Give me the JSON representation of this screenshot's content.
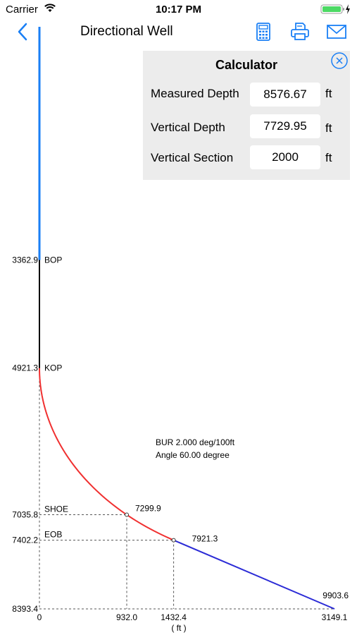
{
  "status_bar": {
    "carrier": "Carrier",
    "time": "10:17 PM"
  },
  "nav": {
    "title": "Directional Well",
    "icons": [
      "chevron-left-icon",
      "calculator-icon",
      "printer-icon",
      "mail-icon"
    ],
    "accent": "#1a7ff5"
  },
  "calculator": {
    "title": "Calculator",
    "rows": [
      {
        "label": "Measured Depth",
        "value": "8576.67",
        "unit": "ft"
      },
      {
        "label": "Vertical Depth",
        "value": "7729.95",
        "unit": "ft"
      },
      {
        "label": "Vertical Section",
        "value": "2000",
        "unit": "ft"
      }
    ]
  },
  "chart_data": {
    "type": "line",
    "x_unit_label": "( ft )",
    "xlim": [
      0,
      3149.1
    ],
    "ylim": [
      0,
      8393.4
    ],
    "y_inverted": true,
    "depth_labels": [
      {
        "depth": 3362.9,
        "value": "3362.9",
        "tag": "BOP"
      },
      {
        "depth": 4921.3,
        "value": "4921.3",
        "tag": "KOP"
      },
      {
        "depth": 7035.8,
        "value": "7035.8",
        "tag": "SHOE"
      },
      {
        "depth": 7402.2,
        "value": "7402.2",
        "tag": "EOB"
      },
      {
        "depth": 8393.4,
        "value": "8393.4",
        "tag": ""
      }
    ],
    "x_ticks": [
      {
        "x": 0,
        "label": "0"
      },
      {
        "x": 932.0,
        "label": "932.0"
      },
      {
        "x": 1432.4,
        "label": "1432.4"
      },
      {
        "x": 3149.1,
        "label": "3149.1"
      }
    ],
    "point_labels": [
      {
        "x": 932.0,
        "y": 7035.8,
        "label": "7299.9"
      },
      {
        "x": 1432.4,
        "y": 7402.2,
        "label": "7921.3"
      },
      {
        "x": 3149.1,
        "y": 8393.4,
        "label": "9903.6"
      }
    ],
    "segments": [
      {
        "name": "riser",
        "color": "#1a7ff5",
        "from": [
          0,
          0
        ],
        "to": [
          0,
          3362.9
        ]
      },
      {
        "name": "vertical",
        "color": "#000000",
        "from": [
          0,
          3362.9
        ],
        "to": [
          0,
          4921.3
        ]
      },
      {
        "name": "build",
        "color": "#f03030",
        "from": [
          0,
          4921.3
        ],
        "to": [
          1432.4,
          7402.2
        ],
        "curved": true
      },
      {
        "name": "tangent",
        "color": "#2b2bd6",
        "from": [
          1432.4,
          7402.2
        ],
        "to": [
          3149.1,
          8393.4
        ]
      }
    ],
    "annotations": [
      "BUR 2.000 deg/100ft",
      "Angle 60.00 degree"
    ]
  }
}
